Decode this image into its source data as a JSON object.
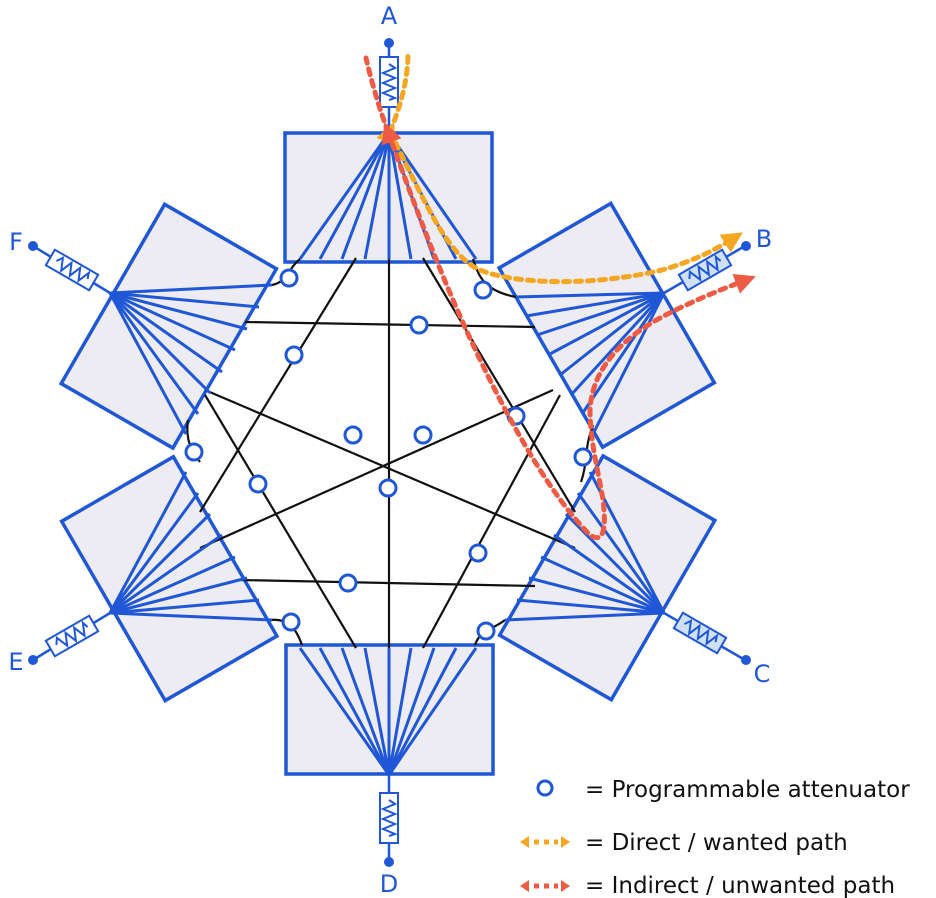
{
  "ports": {
    "a": "A",
    "b": "B",
    "c": "C",
    "d": "D",
    "e": "E",
    "f": "F"
  },
  "legend": {
    "attenuator": "= Programmable attenuator",
    "direct": "= Direct / wanted path",
    "indirect": "= Indirect / unwanted path"
  },
  "colors": {
    "blue": "#1f57d6",
    "box_fill": "#ececf2",
    "direct": "#f5a623",
    "indirect": "#ee5b45",
    "line": "#111111"
  }
}
